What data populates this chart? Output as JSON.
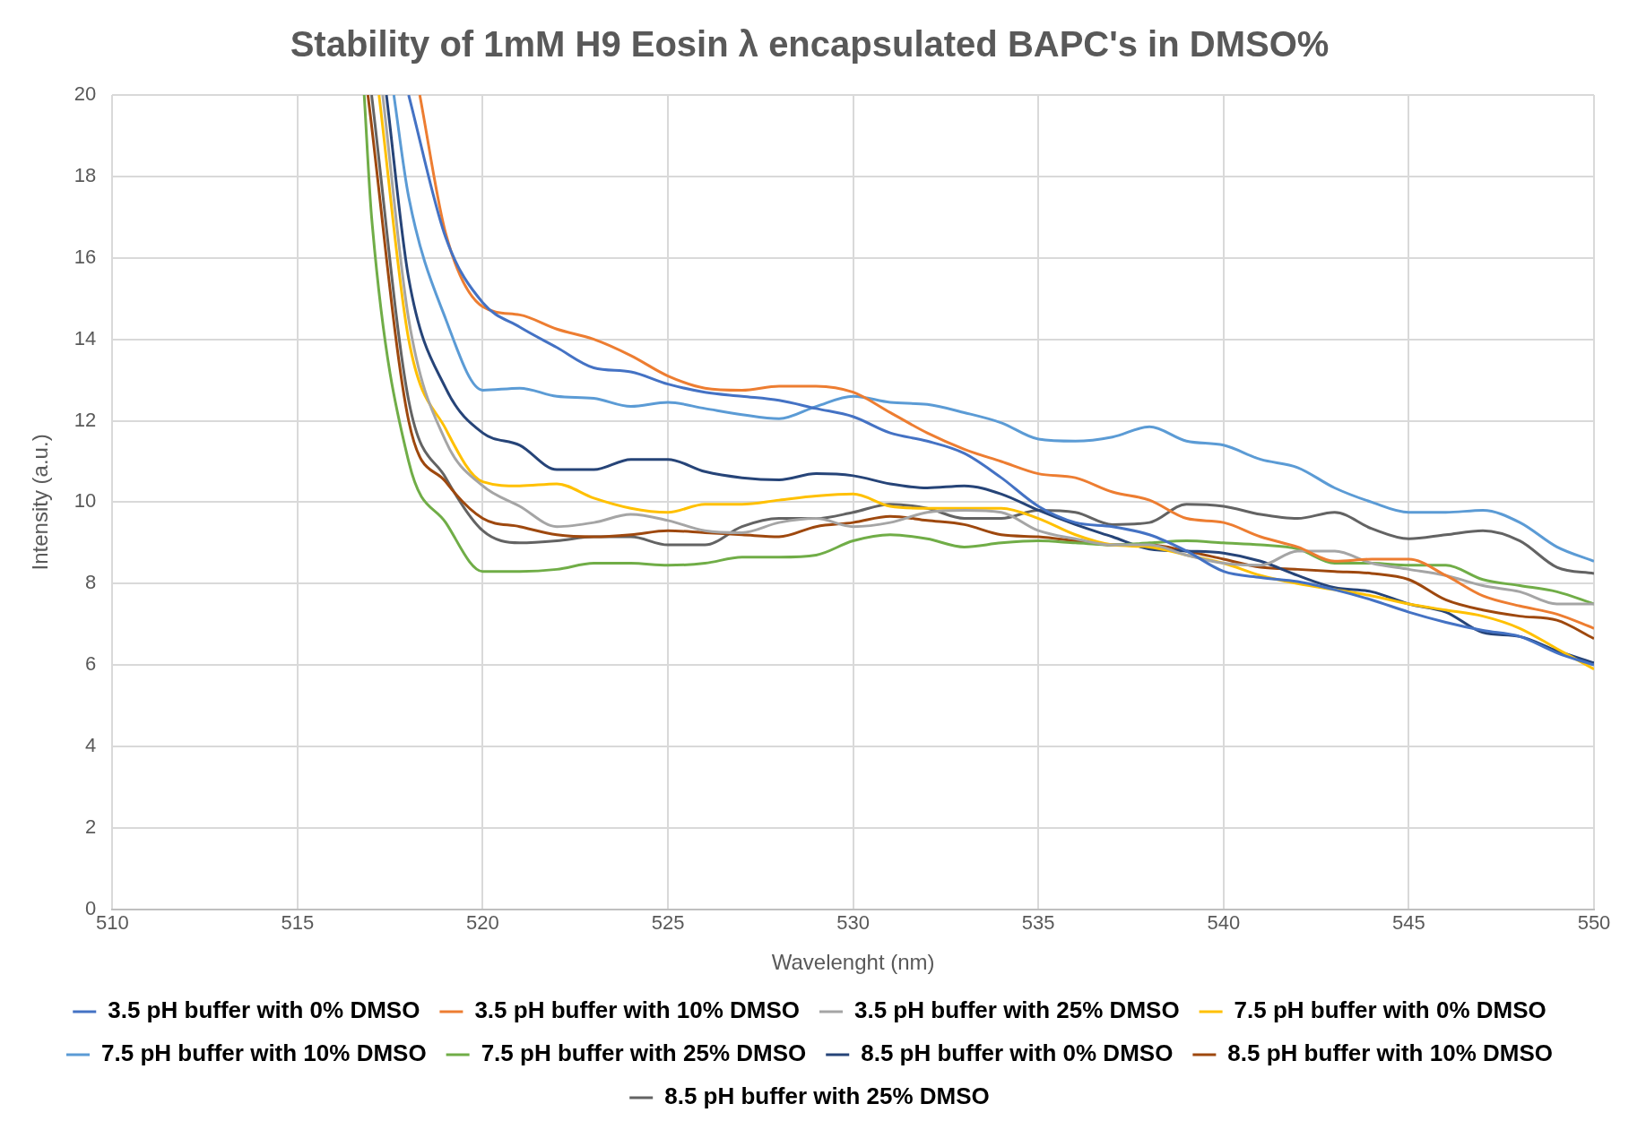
{
  "chart_data": {
    "type": "line",
    "title": "Stability of 1mM H9 Eosin λ encapsulated BAPC's in DMSO%",
    "xlabel": "Wavelenght (nm)",
    "ylabel": "Intensity (a.u.)",
    "xlim": [
      510,
      550
    ],
    "xticks": [
      510,
      515,
      520,
      525,
      530,
      535,
      540,
      545,
      550
    ],
    "ylim": [
      0,
      20
    ],
    "yticks": [
      0,
      2,
      4,
      6,
      8,
      10,
      12,
      14,
      16,
      18,
      20
    ],
    "grid": true,
    "legend": "bottom",
    "marker": "none",
    "line_style": "solid",
    "series": [
      {
        "name": "3.5 pH buffer with 0% DMSO",
        "color": "#4472c4",
        "x": [
          518,
          519,
          520,
          521,
          522,
          523,
          524,
          525,
          526,
          527,
          528,
          529,
          530,
          531,
          532,
          533,
          534,
          535,
          536,
          537,
          538,
          539,
          540,
          541,
          542,
          543,
          544,
          545,
          546,
          547,
          548,
          549,
          550
        ],
        "values": [
          20,
          16.5,
          14.9,
          14.3,
          13.8,
          13.3,
          13.2,
          12.9,
          12.7,
          12.6,
          12.5,
          12.3,
          12.1,
          11.7,
          11.5,
          11.2,
          10.6,
          9.9,
          9.5,
          9.4,
          9.2,
          8.8,
          8.3,
          8.15,
          8.05,
          7.85,
          7.6,
          7.3,
          7.05,
          6.85,
          6.7,
          6.3,
          6.0
        ]
      },
      {
        "name": "3.5 pH buffer with 10% DMSO",
        "color": "#ed7d31",
        "x": [
          518.3,
          519,
          520,
          521,
          522,
          523,
          524,
          525,
          526,
          527,
          528,
          529,
          530,
          531,
          532,
          533,
          534,
          535,
          536,
          537,
          538,
          539,
          540,
          541,
          542,
          543,
          544,
          545,
          546,
          547,
          548,
          549,
          550
        ],
        "values": [
          20,
          16.6,
          14.8,
          14.6,
          14.25,
          14.0,
          13.6,
          13.1,
          12.8,
          12.75,
          12.85,
          12.85,
          12.7,
          12.2,
          11.7,
          11.3,
          11.0,
          10.7,
          10.6,
          10.25,
          10.05,
          9.6,
          9.5,
          9.15,
          8.9,
          8.55,
          8.6,
          8.6,
          8.2,
          7.7,
          7.45,
          7.25,
          6.9
        ]
      },
      {
        "name": "3.5 pH buffer with 25% DMSO",
        "color": "#a5a5a5",
        "x": [
          517.3,
          518,
          519,
          520,
          521,
          522,
          523,
          524,
          525,
          526,
          527,
          528,
          529,
          530,
          531,
          532,
          533,
          534,
          535,
          536,
          537,
          538,
          539,
          540,
          541,
          542,
          543,
          544,
          545,
          546,
          547,
          548,
          549,
          550
        ],
        "values": [
          20,
          14.5,
          11.5,
          10.4,
          9.9,
          9.4,
          9.5,
          9.7,
          9.55,
          9.3,
          9.25,
          9.5,
          9.6,
          9.4,
          9.5,
          9.75,
          9.8,
          9.75,
          9.3,
          9.1,
          8.95,
          8.95,
          8.7,
          8.5,
          8.45,
          8.8,
          8.8,
          8.5,
          8.35,
          8.2,
          7.95,
          7.8,
          7.5,
          7.5
        ]
      },
      {
        "name": "7.5 pH buffer with 0% DMSO",
        "color": "#ffc000",
        "x": [
          517.2,
          518,
          519,
          520,
          521,
          522,
          523,
          524,
          525,
          526,
          527,
          528,
          529,
          530,
          531,
          532,
          533,
          534,
          535,
          536,
          537,
          538,
          539,
          540,
          541,
          542,
          543,
          544,
          545,
          546,
          547,
          548,
          549,
          550
        ],
        "values": [
          20,
          14.0,
          11.8,
          10.5,
          10.4,
          10.45,
          10.1,
          9.85,
          9.75,
          9.95,
          9.95,
          10.05,
          10.15,
          10.2,
          9.9,
          9.85,
          9.85,
          9.85,
          9.6,
          9.2,
          8.95,
          8.9,
          8.7,
          8.5,
          8.2,
          8.0,
          7.85,
          7.7,
          7.5,
          7.35,
          7.2,
          6.9,
          6.4,
          5.9
        ]
      },
      {
        "name": "7.5 pH buffer with 10% DMSO",
        "color": "#5b9bd5",
        "x": [
          517.6,
          518,
          519,
          520,
          521,
          522,
          523,
          524,
          525,
          526,
          527,
          528,
          529,
          530,
          531,
          532,
          533,
          534,
          535,
          536,
          537,
          538,
          539,
          540,
          541,
          542,
          543,
          544,
          545,
          546,
          547,
          548,
          549,
          550
        ],
        "values": [
          20,
          17.5,
          14.5,
          12.75,
          12.8,
          12.6,
          12.55,
          12.35,
          12.45,
          12.3,
          12.15,
          12.05,
          12.35,
          12.6,
          12.45,
          12.4,
          12.2,
          11.95,
          11.55,
          11.5,
          11.6,
          11.85,
          11.5,
          11.4,
          11.05,
          10.85,
          10.35,
          10.0,
          9.75,
          9.75,
          9.8,
          9.5,
          8.9,
          8.55
        ]
      },
      {
        "name": "7.5 pH buffer with 25% DMSO",
        "color": "#70ad47",
        "x": [
          516.8,
          517,
          518,
          519,
          520,
          521,
          522,
          523,
          524,
          525,
          526,
          527,
          528,
          529,
          530,
          531,
          532,
          533,
          534,
          535,
          536,
          537,
          538,
          539,
          540,
          541,
          542,
          543,
          544,
          545,
          546,
          547,
          548,
          549,
          550
        ],
        "values": [
          20,
          17.0,
          11.0,
          9.5,
          8.3,
          8.3,
          8.35,
          8.5,
          8.5,
          8.45,
          8.5,
          8.65,
          8.65,
          8.7,
          9.05,
          9.2,
          9.1,
          8.9,
          9.0,
          9.05,
          9.0,
          8.95,
          9.0,
          9.05,
          9.0,
          8.95,
          8.85,
          8.5,
          8.5,
          8.45,
          8.45,
          8.1,
          7.95,
          7.8,
          7.5
        ]
      },
      {
        "name": "8.5 pH buffer with 0% DMSO",
        "color": "#264478",
        "x": [
          517.4,
          518,
          519,
          520,
          521,
          522,
          523,
          524,
          525,
          526,
          527,
          528,
          529,
          530,
          531,
          532,
          533,
          534,
          535,
          536,
          537,
          538,
          539,
          540,
          541,
          542,
          543,
          544,
          545,
          546,
          547,
          548,
          549,
          550
        ],
        "values": [
          20,
          15.5,
          12.8,
          11.7,
          11.4,
          10.8,
          10.8,
          11.05,
          11.05,
          10.75,
          10.6,
          10.55,
          10.7,
          10.65,
          10.45,
          10.35,
          10.4,
          10.2,
          9.8,
          9.45,
          9.15,
          8.85,
          8.8,
          8.75,
          8.55,
          8.2,
          7.9,
          7.8,
          7.5,
          7.3,
          6.8,
          6.7,
          6.35,
          6.05
        ]
      },
      {
        "name": "8.5 pH buffer with 10% DMSO",
        "color": "#9e480e",
        "x": [
          516.9,
          518,
          519,
          520,
          521,
          522,
          523,
          524,
          525,
          526,
          527,
          528,
          529,
          530,
          531,
          532,
          533,
          534,
          535,
          536,
          537,
          538,
          539,
          540,
          541,
          542,
          543,
          544,
          545,
          546,
          547,
          548,
          549,
          550
        ],
        "values": [
          20,
          12.0,
          10.5,
          9.6,
          9.4,
          9.2,
          9.15,
          9.2,
          9.3,
          9.25,
          9.2,
          9.15,
          9.4,
          9.5,
          9.65,
          9.55,
          9.45,
          9.2,
          9.15,
          9.05,
          8.95,
          8.95,
          8.8,
          8.6,
          8.4,
          8.35,
          8.3,
          8.25,
          8.1,
          7.6,
          7.35,
          7.2,
          7.1,
          6.65
        ]
      },
      {
        "name": "8.5 pH buffer with 25% DMSO",
        "color": "#636363",
        "x": [
          517,
          518,
          519,
          520,
          521,
          522,
          523,
          524,
          525,
          526,
          527,
          528,
          529,
          530,
          531,
          532,
          533,
          534,
          535,
          536,
          537,
          538,
          539,
          540,
          541,
          542,
          543,
          544,
          545,
          546,
          547,
          548,
          549,
          550
        ],
        "values": [
          20,
          12.5,
          10.6,
          9.3,
          9.0,
          9.05,
          9.15,
          9.15,
          8.95,
          8.95,
          9.4,
          9.6,
          9.6,
          9.75,
          9.95,
          9.85,
          9.6,
          9.6,
          9.8,
          9.75,
          9.45,
          9.5,
          9.95,
          9.9,
          9.7,
          9.6,
          9.75,
          9.35,
          9.1,
          9.2,
          9.3,
          9.05,
          8.4,
          8.25
        ]
      }
    ]
  }
}
